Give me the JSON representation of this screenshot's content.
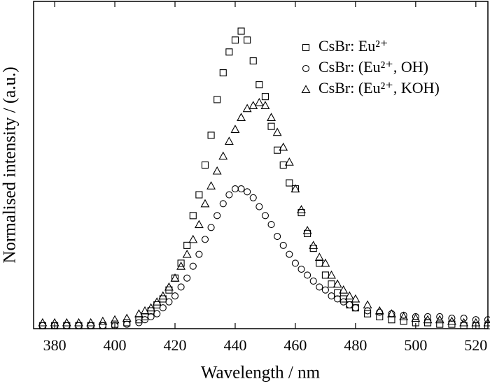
{
  "chart_data": {
    "type": "scatter",
    "xlabel": "Wavelength / nm",
    "ylabel": "Normalised intensity / (a.u.)",
    "xlim": [
      373,
      524
    ],
    "ylim": [
      0,
      1.1
    ],
    "xticks": [
      380,
      400,
      420,
      440,
      460,
      480,
      500,
      520
    ],
    "x": [
      376,
      380,
      384,
      388,
      392,
      396,
      400,
      404,
      408,
      410,
      412,
      414,
      416,
      418,
      420,
      422,
      424,
      426,
      428,
      430,
      432,
      434,
      436,
      438,
      440,
      442,
      444,
      446,
      448,
      450,
      452,
      454,
      456,
      458,
      460,
      462,
      464,
      466,
      468,
      470,
      472,
      474,
      476,
      478,
      480,
      484,
      488,
      492,
      496,
      500,
      504,
      508,
      512,
      516,
      520,
      524
    ],
    "series": [
      {
        "name": "CsBr: Eu²⁺",
        "marker": "square",
        "color": "#000000",
        "values": [
          0.01,
          0.01,
          0.01,
          0.01,
          0.01,
          0.01,
          0.015,
          0.02,
          0.03,
          0.04,
          0.06,
          0.08,
          0.1,
          0.13,
          0.17,
          0.22,
          0.28,
          0.38,
          0.45,
          0.55,
          0.65,
          0.77,
          0.86,
          0.93,
          0.97,
          1.0,
          0.97,
          0.9,
          0.82,
          0.78,
          0.68,
          0.6,
          0.55,
          0.49,
          0.47,
          0.39,
          0.32,
          0.27,
          0.22,
          0.18,
          0.15,
          0.12,
          0.1,
          0.08,
          0.07,
          0.05,
          0.04,
          0.03,
          0.025,
          0.02,
          0.02,
          0.015,
          0.015,
          0.01,
          0.01,
          0.01
        ]
      },
      {
        "name": "CsBr: (Eu²⁺, OH)",
        "marker": "circle",
        "color": "#000000",
        "values": [
          0.01,
          0.01,
          0.01,
          0.01,
          0.01,
          0.01,
          0.01,
          0.015,
          0.02,
          0.03,
          0.04,
          0.05,
          0.07,
          0.09,
          0.11,
          0.14,
          0.17,
          0.21,
          0.25,
          0.3,
          0.34,
          0.38,
          0.42,
          0.45,
          0.47,
          0.47,
          0.46,
          0.44,
          0.41,
          0.38,
          0.35,
          0.31,
          0.28,
          0.25,
          0.22,
          0.2,
          0.18,
          0.16,
          0.14,
          0.13,
          0.11,
          0.1,
          0.09,
          0.08,
          0.07,
          0.06,
          0.055,
          0.05,
          0.045,
          0.04,
          0.04,
          0.04,
          0.035,
          0.035,
          0.03,
          0.03
        ]
      },
      {
        "name": "CsBr: (Eu²⁺, KOH)",
        "marker": "triangle",
        "color": "#000000",
        "values": [
          0.02,
          0.02,
          0.02,
          0.02,
          0.02,
          0.025,
          0.03,
          0.035,
          0.05,
          0.06,
          0.07,
          0.09,
          0.11,
          0.14,
          0.17,
          0.21,
          0.25,
          0.3,
          0.35,
          0.42,
          0.48,
          0.53,
          0.58,
          0.63,
          0.67,
          0.71,
          0.74,
          0.75,
          0.76,
          0.75,
          0.71,
          0.66,
          0.61,
          0.56,
          0.47,
          0.4,
          0.33,
          0.28,
          0.24,
          0.22,
          0.18,
          0.15,
          0.13,
          0.11,
          0.1,
          0.08,
          0.06,
          0.05,
          0.04,
          0.035,
          0.03,
          0.03,
          0.025,
          0.02,
          0.02,
          0.02
        ]
      }
    ]
  }
}
